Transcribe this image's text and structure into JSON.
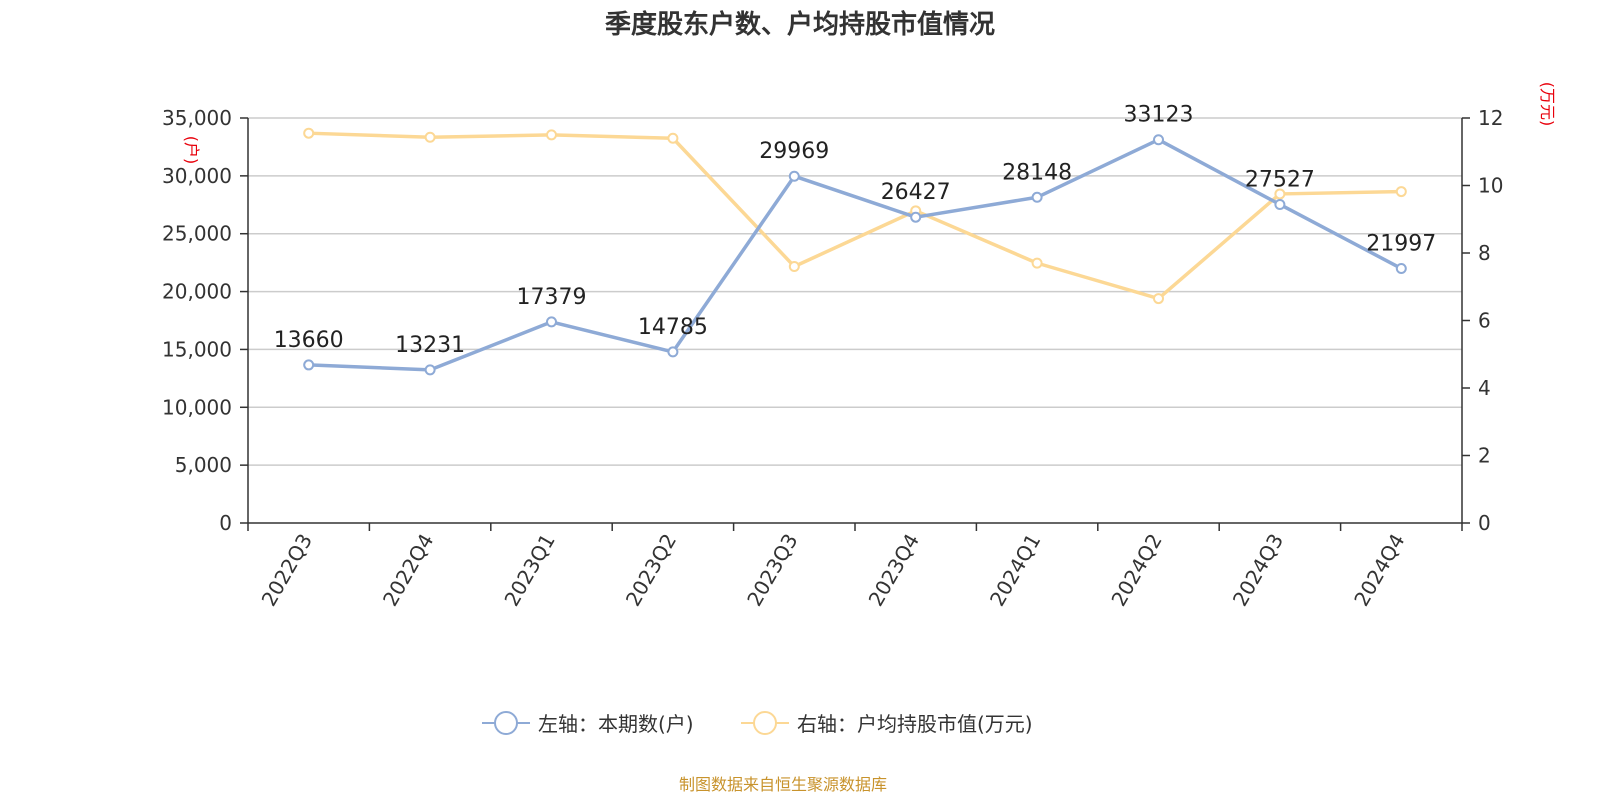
{
  "chart_data": {
    "type": "line",
    "title": "季度股东户数、户均持股市值情况",
    "categories": [
      "2022Q3",
      "2022Q4",
      "2023Q1",
      "2023Q2",
      "2023Q3",
      "2023Q4",
      "2024Q1",
      "2024Q2",
      "2024Q3",
      "2024Q4"
    ],
    "series": [
      {
        "name": "左轴：本期数(户)",
        "axis": "left",
        "color": "#8eaad6",
        "values": [
          13660,
          13231,
          17379,
          14785,
          29969,
          26427,
          28148,
          33123,
          27527,
          21997
        ],
        "show_labels": true
      },
      {
        "name": "右轴：户均持股市值(万元)",
        "axis": "right",
        "color": "#fcd895",
        "values": [
          11.55,
          11.43,
          11.5,
          11.4,
          7.6,
          9.25,
          7.7,
          6.65,
          9.75,
          9.82
        ],
        "show_labels": false
      }
    ],
    "y_left": {
      "unit": "(户)",
      "ylim": [
        0,
        35000
      ],
      "ticks": [
        0,
        5000,
        10000,
        15000,
        20000,
        25000,
        30000,
        35000
      ],
      "tick_labels": [
        "0",
        "5,000",
        "10,000",
        "15,000",
        "20,000",
        "25,000",
        "30,000",
        "35,000"
      ]
    },
    "y_right": {
      "unit": "(万元)",
      "ylim": [
        0,
        12
      ],
      "ticks": [
        0,
        2,
        4,
        6,
        8,
        10,
        12
      ],
      "tick_labels": [
        "0",
        "2",
        "4",
        "6",
        "8",
        "10",
        "12"
      ]
    },
    "grid": true,
    "legend_position": "bottom-center"
  },
  "source": "制图数据来自恒生聚源数据库"
}
